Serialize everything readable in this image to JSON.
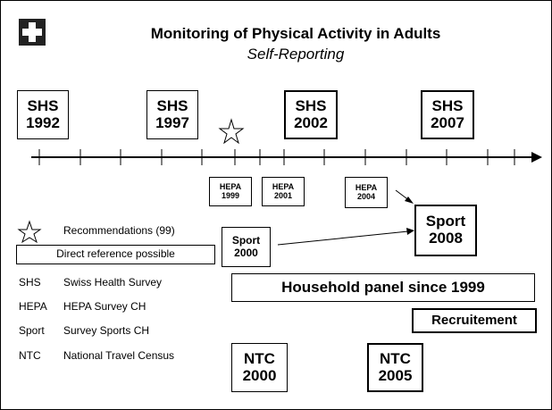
{
  "header": {
    "title": "Monitoring of Physical Activity in Adults",
    "subtitle": "Self-Reporting"
  },
  "surveys": [
    {
      "name": "SHS",
      "year": "1992"
    },
    {
      "name": "SHS",
      "year": "1997"
    },
    {
      "name": "SHS",
      "year": "2002"
    },
    {
      "name": "SHS",
      "year": "2007"
    }
  ],
  "hepa": [
    {
      "name": "HEPA",
      "year": "1999"
    },
    {
      "name": "HEPA",
      "year": "2001"
    },
    {
      "name": "HEPA",
      "year": "2004"
    }
  ],
  "sport": [
    {
      "name": "Sport",
      "year": "2000"
    },
    {
      "name": "Sport",
      "year": "2008"
    }
  ],
  "ntc": [
    {
      "name": "NTC",
      "year": "2000"
    },
    {
      "name": "NTC",
      "year": "2005"
    }
  ],
  "household": "Household panel since 1999",
  "recruitement": "Recruitement",
  "legend": {
    "recommendations": "Recommendations (99)",
    "direct": "Direct reference possible",
    "abbreviations": [
      {
        "abbr": "SHS",
        "text": "Swiss Health Survey"
      },
      {
        "abbr": "HEPA",
        "text": "HEPA Survey CH"
      },
      {
        "abbr": "Sport",
        "text": "Survey Sports CH"
      },
      {
        "abbr": "NTC",
        "text": "National Travel Census"
      }
    ]
  }
}
